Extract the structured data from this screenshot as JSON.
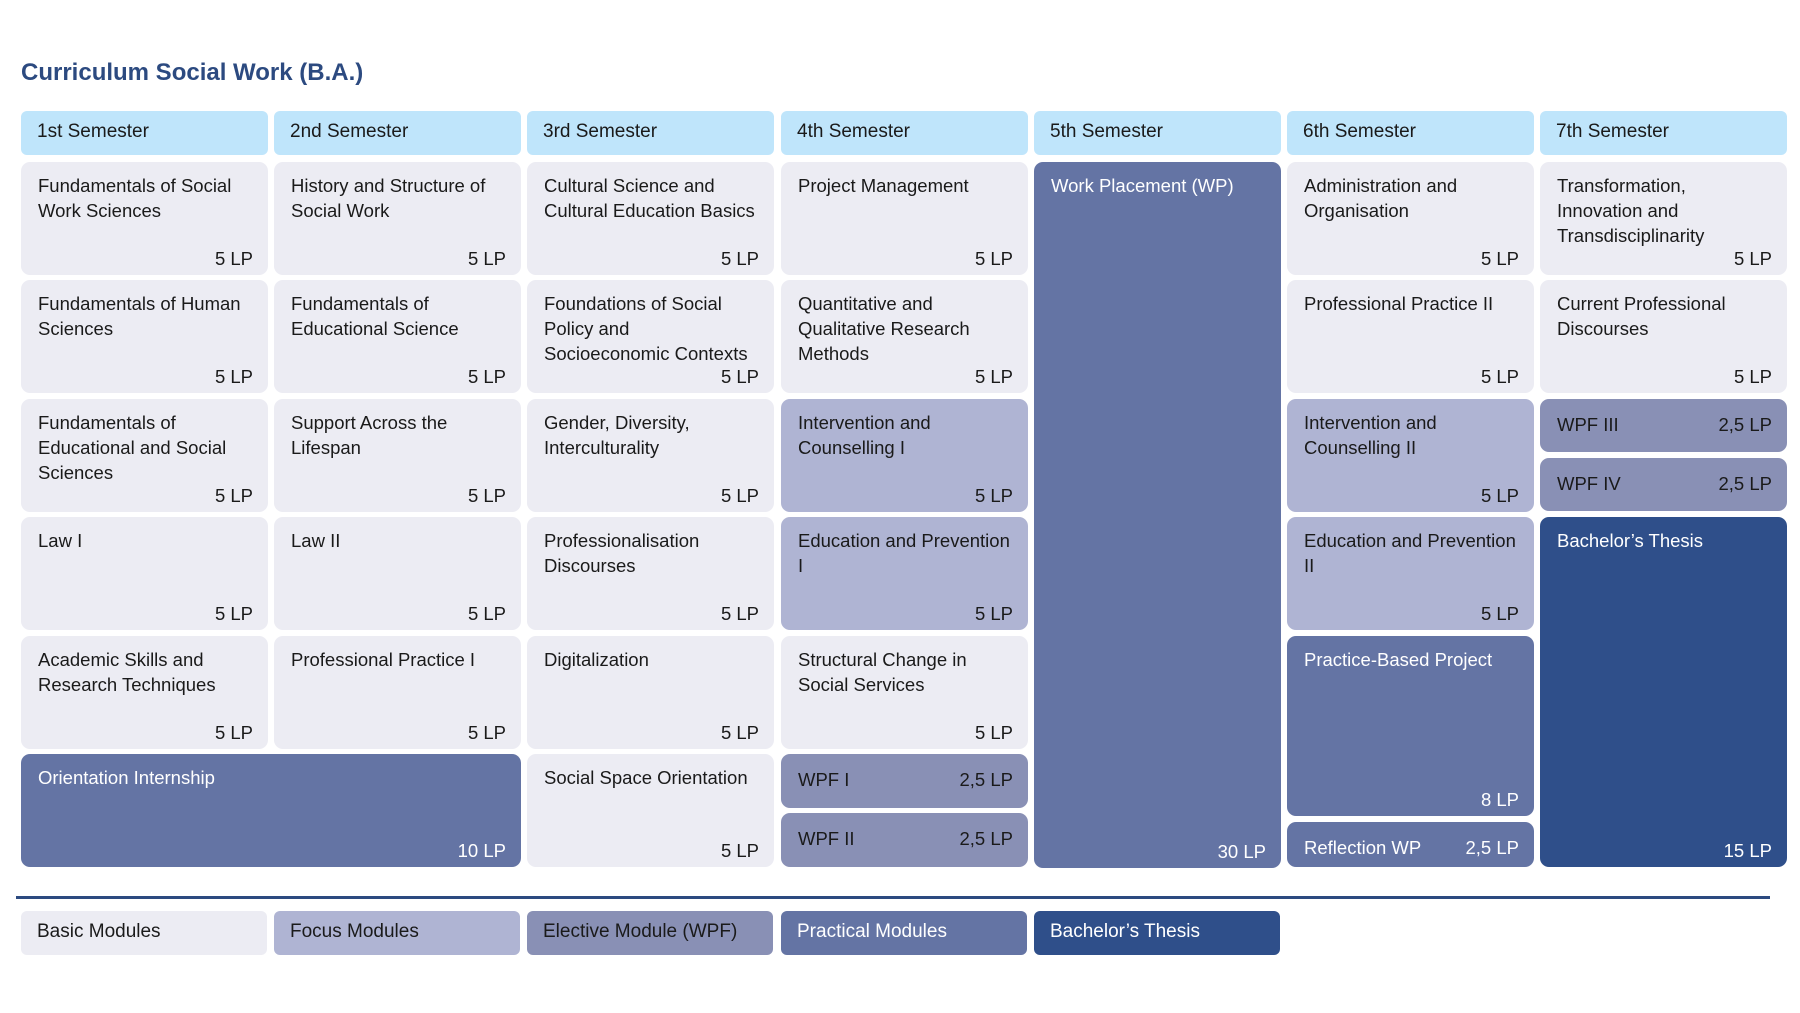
{
  "title": "Curriculum Social Work (B.A.)",
  "colors": {
    "basic": "#ececf3",
    "focus": "#afb4d3",
    "elective": "#8990b5",
    "practical": "#6474a4",
    "thesis": "#2f4f8a",
    "semester_header": "#bfe5fb",
    "title": "#2c4a80"
  },
  "semesters": [
    "1st Semester",
    "2nd Semester",
    "3rd Semester",
    "4th Semester",
    "5th Semester",
    "6th Semester",
    "7th Semester"
  ],
  "modules": [
    {
      "name": "Fundamentals of Social Work Sciences",
      "lp": "5 LP",
      "type": "basic"
    },
    {
      "name": "Fundamentals of Human Sciences",
      "lp": "5 LP",
      "type": "basic"
    },
    {
      "name": "Fundamentals of Educational and Social Sciences",
      "lp": "5 LP",
      "type": "basic"
    },
    {
      "name": "Law I",
      "lp": "5 LP",
      "type": "basic"
    },
    {
      "name": "Academic Skills and Research Techniques",
      "lp": "5 LP",
      "type": "basic"
    },
    {
      "name": "Orientation Internship",
      "lp": "10 LP",
      "type": "practical"
    },
    {
      "name": "History and Structure of Social Work",
      "lp": "5 LP",
      "type": "basic"
    },
    {
      "name": "Fundamentals of Educational Science",
      "lp": "5 LP",
      "type": "basic"
    },
    {
      "name": "Support Across the Lifespan",
      "lp": "5 LP",
      "type": "basic"
    },
    {
      "name": "Law II",
      "lp": "5 LP",
      "type": "basic"
    },
    {
      "name": "Professional Practice I",
      "lp": "5 LP",
      "type": "basic"
    },
    {
      "name": "Cultural Science and Cultural Education Basics",
      "lp": "5 LP",
      "type": "basic"
    },
    {
      "name": "Foundations of Social Policy and Socioeconomic Contexts",
      "lp": "5 LP",
      "type": "basic"
    },
    {
      "name": "Gender, Diversity, Interculturality",
      "lp": "5 LP",
      "type": "basic"
    },
    {
      "name": "Professionalisation Discourses",
      "lp": "5 LP",
      "type": "basic"
    },
    {
      "name": "Digitalization",
      "lp": "5 LP",
      "type": "basic"
    },
    {
      "name": "Social Space Orientation",
      "lp": "5 LP",
      "type": "basic"
    },
    {
      "name": "Project Management",
      "lp": "5 LP",
      "type": "basic"
    },
    {
      "name": "Quantitative and Qualitative Research Methods",
      "lp": "5 LP",
      "type": "basic"
    },
    {
      "name": "Intervention and Counselling I",
      "lp": "5 LP",
      "type": "focus"
    },
    {
      "name": "Education and Prevention I",
      "lp": "5 LP",
      "type": "focus"
    },
    {
      "name": "Structural Change in Social Services",
      "lp": "5 LP",
      "type": "basic"
    },
    {
      "name": "WPF I",
      "lp": "2,5 LP",
      "type": "elective"
    },
    {
      "name": "WPF II",
      "lp": "2,5 LP",
      "type": "elective"
    },
    {
      "name": "Work Placement (WP)",
      "lp": "30 LP",
      "type": "practical"
    },
    {
      "name": "Administration and Organisation",
      "lp": "5 LP",
      "type": "basic"
    },
    {
      "name": "Professional Practice II",
      "lp": "5 LP",
      "type": "basic"
    },
    {
      "name": "Intervention and Counselling II",
      "lp": "5 LP",
      "type": "focus"
    },
    {
      "name": "Education and Prevention II",
      "lp": "5 LP",
      "type": "focus"
    },
    {
      "name": "Practice-Based Project",
      "lp": "8 LP",
      "type": "practical"
    },
    {
      "name": "Reflection WP",
      "lp": "2,5 LP",
      "type": "practical"
    },
    {
      "name": "Transformation, Innovation and Transdisciplinarity",
      "lp": "5 LP",
      "type": "basic"
    },
    {
      "name": "Current Professional Discourses",
      "lp": "5 LP",
      "type": "basic"
    },
    {
      "name": "WPF III",
      "lp": "2,5 LP",
      "type": "elective"
    },
    {
      "name": "WPF IV",
      "lp": "2,5 LP",
      "type": "elective"
    },
    {
      "name": "Bachelor’s Thesis",
      "lp": "15  LP",
      "type": "thesis"
    }
  ],
  "legend": [
    {
      "label": "Basic Modules",
      "type": "basic"
    },
    {
      "label": "Focus Modules",
      "type": "focus"
    },
    {
      "label": "Elective Module (WPF)",
      "type": "elective"
    },
    {
      "label": "Practical Modules",
      "type": "practical"
    },
    {
      "label": "Bachelor’s Thesis",
      "type": "thesis"
    }
  ]
}
